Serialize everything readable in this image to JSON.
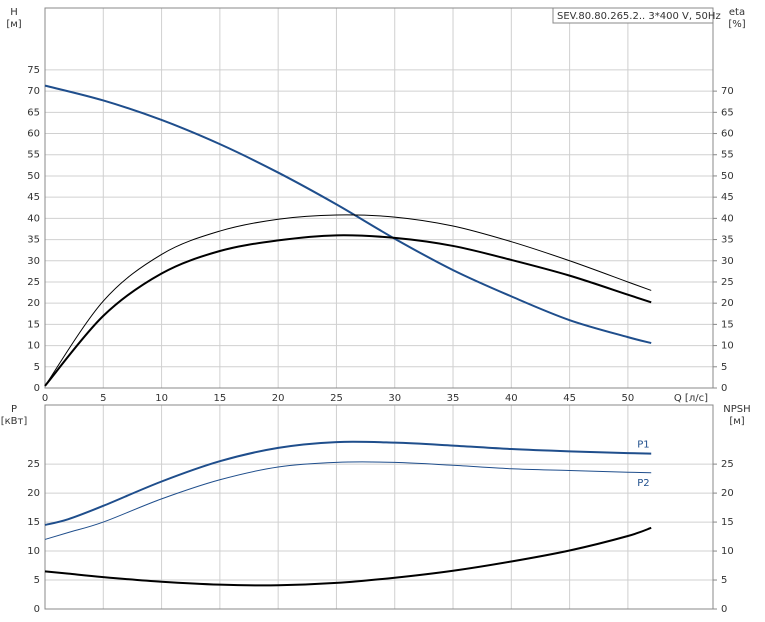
{
  "chart_data": [
    {
      "type": "line",
      "title": "SEV.80.80.265.2.. 3*400 V, 50Hz",
      "xlabel": "Q [л/с]",
      "ylabel": [
        "H",
        "[м]"
      ],
      "y2label": [
        "eta",
        "[%]"
      ],
      "x": [
        0,
        5,
        10,
        15,
        20,
        25,
        30,
        35,
        40,
        45,
        50,
        52
      ],
      "xlim": [
        0,
        57.3
      ],
      "xticks": [
        0,
        5,
        10,
        15,
        20,
        25,
        30,
        35,
        40,
        45,
        50
      ],
      "ylim": [
        0,
        89.6
      ],
      "yticks": [
        0,
        5,
        10,
        15,
        20,
        25,
        30,
        35,
        40,
        45,
        50,
        55,
        60,
        65,
        70,
        75
      ],
      "y2lim": [
        0,
        89.6
      ],
      "y2ticks": [
        0,
        5,
        10,
        15,
        20,
        25,
        30,
        35,
        40,
        45,
        50,
        55,
        60,
        65,
        70
      ],
      "grid": true,
      "series": [
        {
          "color": "#1f4e8c",
          "values": [
            71.3,
            67.8,
            63.2,
            57.5,
            50.8,
            43.3,
            35.2,
            27.8,
            21.6,
            16,
            12,
            10.6
          ]
        },
        {
          "color": "#000000",
          "axis": "y2",
          "values": [
            0.5,
            17,
            27,
            32.3,
            34.8,
            36,
            35.4,
            33.5,
            30.2,
            26.5,
            22,
            20.2
          ]
        },
        {
          "color": "#000000",
          "axis": "y2",
          "values": [
            0.5,
            20.5,
            31.5,
            37,
            39.8,
            40.8,
            40.3,
            38.2,
            34.5,
            30,
            25,
            23
          ]
        }
      ]
    },
    {
      "type": "line",
      "ylabel": [
        "P",
        "[кВт]"
      ],
      "y2label": [
        "NPSH",
        "[м]"
      ],
      "x": [
        0,
        2,
        5,
        10,
        15,
        20,
        25,
        30,
        35,
        40,
        45,
        50,
        52
      ],
      "xlim": [
        0,
        57.3
      ],
      "xticks": [
        0,
        5,
        10,
        15,
        20,
        25,
        30,
        35,
        40,
        45,
        50
      ],
      "ylim": [
        0,
        35.2
      ],
      "yticks": [
        0,
        5,
        10,
        15,
        20,
        25
      ],
      "y2lim": [
        0,
        35.2
      ],
      "y2ticks": [
        0,
        5,
        10,
        15,
        20,
        25
      ],
      "grid": true,
      "series": [
        {
          "name": "P1",
          "color": "#1f4e8c",
          "values": [
            14.5,
            15.5,
            17.8,
            22,
            25.5,
            27.8,
            28.8,
            28.7,
            28.2,
            27.6,
            27.2,
            26.9,
            26.8
          ]
        },
        {
          "name": "P2",
          "color": "#1f4e8c",
          "values": [
            12,
            13.2,
            15,
            19,
            22.3,
            24.5,
            25.3,
            25.3,
            24.8,
            24.2,
            23.9,
            23.6,
            23.5
          ]
        },
        {
          "color": "#000000",
          "axis": "y2",
          "values": [
            6.5,
            6.1,
            5.5,
            4.7,
            4.2,
            4.1,
            4.5,
            5.4,
            6.6,
            8.2,
            10.1,
            12.6,
            14
          ]
        }
      ]
    }
  ]
}
